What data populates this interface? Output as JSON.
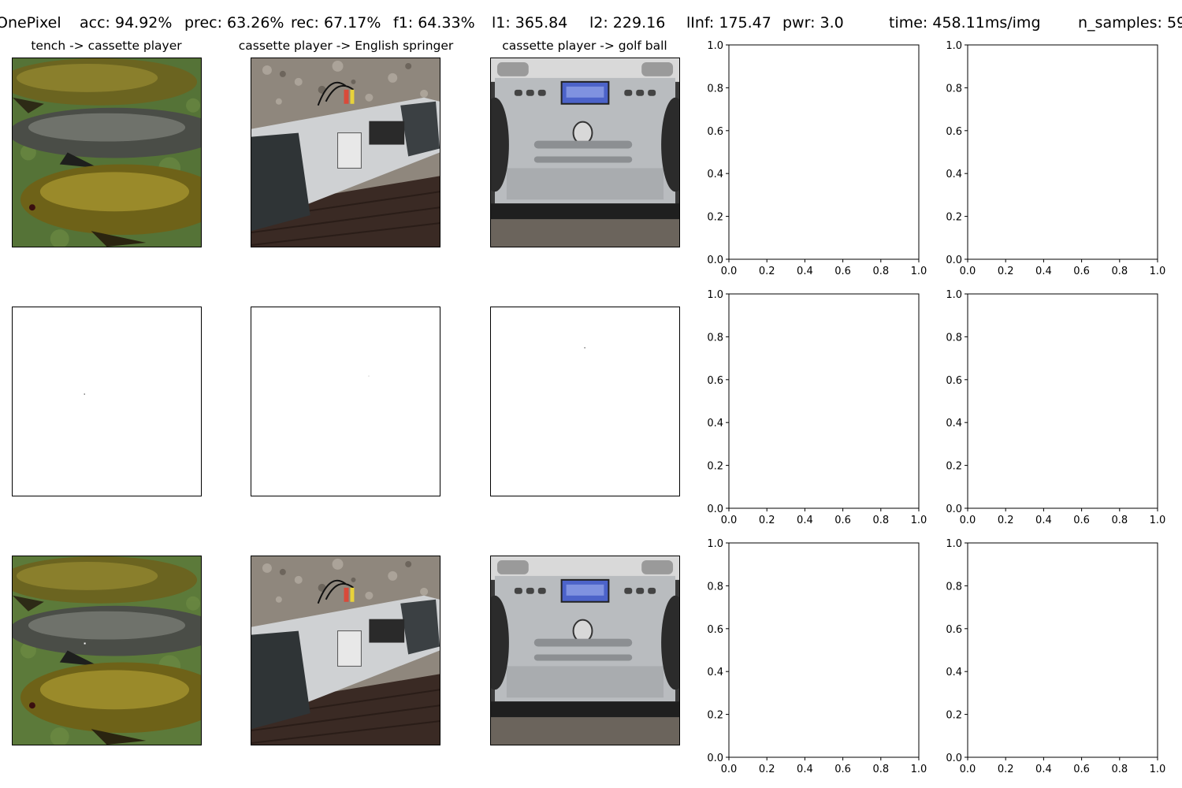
{
  "header": {
    "attack": "OnePixel",
    "acc": "acc: 94.92%",
    "prec": "prec: 63.26%",
    "rec": "rec: 67.17%",
    "f1": "f1: 64.33%",
    "l1": "l1: 365.84",
    "l2": "l2: 229.16",
    "linf": "lInf: 175.47",
    "pwr": "pwr: 3.0",
    "time": "time: 458.11ms/img",
    "samples": "n_samples: 59"
  },
  "panels": [
    {
      "title": "tench -> cassette player",
      "image": "tench-fish-photo",
      "perturbation": "single-pixel-noise"
    },
    {
      "title": "cassette player -> English springer",
      "image": "sony-boombox-photo",
      "perturbation": "single-pixel-noise"
    },
    {
      "title": "cassette player -> golf ball",
      "image": "silver-stereo-photo",
      "perturbation": "single-pixel-noise"
    }
  ],
  "chart_data": {
    "type": "scatter",
    "description_grid": "3 rows x 5 columns; columns 4-5 are empty axes",
    "empty_axes": {
      "xlim": [
        0.0,
        1.0
      ],
      "ylim": [
        0.0,
        1.0
      ],
      "xticks": [
        "0.0",
        "0.2",
        "0.4",
        "0.6",
        "0.8",
        "1.0"
      ],
      "yticks": [
        "0.0",
        "0.2",
        "0.4",
        "0.6",
        "0.8",
        "1.0"
      ],
      "series": []
    }
  }
}
